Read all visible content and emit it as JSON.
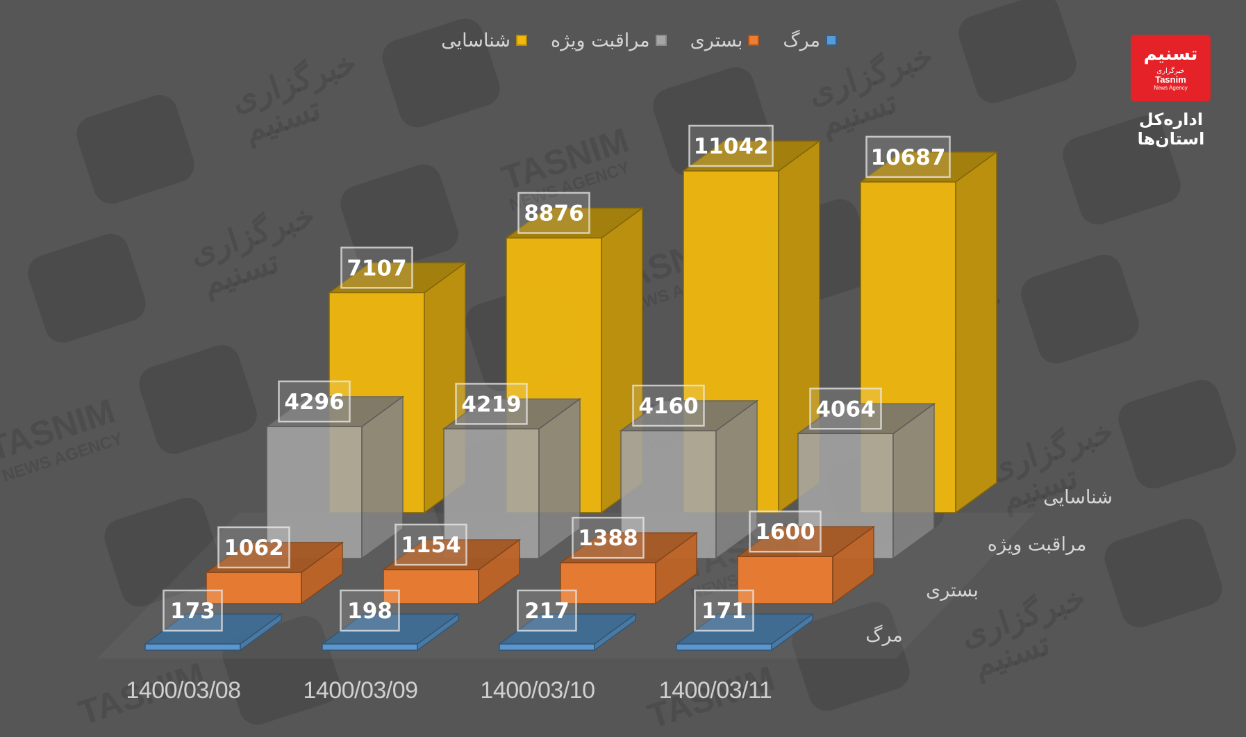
{
  "legend": [
    {
      "label": "شناسایی",
      "color": "#f0b90e",
      "border": "#b38a0b"
    },
    {
      "label": "مراقبت ویژه",
      "color": "#a5a5a5",
      "border": "#8a8a8a"
    },
    {
      "label": "بستری",
      "color": "#ed7d31",
      "border": "#a8541c"
    },
    {
      "label": "مرگ",
      "color": "#5b9bd5",
      "border": "#2e5f8f"
    }
  ],
  "series_axis_labels": [
    "شناسایی",
    "مراقبت ویژه",
    "بستری",
    "مرگ"
  ],
  "categories": [
    "1400/03/08",
    "1400/03/09",
    "1400/03/10",
    "1400/03/11"
  ],
  "logo": {
    "glyph": "تسنیم",
    "line1": "خبرگزاری",
    "line2": "Tasnim",
    "line3": "News Agency",
    "caption": "اداره‌کل استان‌ها"
  },
  "watermark": {
    "text_fa_1": "خبرگزاری",
    "text_fa_2": "تسنیم",
    "text_en_1": "TASNIM",
    "text_en_2": "NEWS AGENCY"
  },
  "chart_data": {
    "type": "bar",
    "subtype": "3d-column",
    "title": "",
    "xlabel": "",
    "ylabel": "",
    "categories": [
      "1400/03/08",
      "1400/03/09",
      "1400/03/10",
      "1400/03/11"
    ],
    "series": [
      {
        "name": "شناسایی",
        "color": "#f0b90e",
        "values": [
          7107,
          8876,
          11042,
          10687
        ]
      },
      {
        "name": "مراقبت ویژه",
        "color": "#a5a5a5",
        "values": [
          4296,
          4219,
          4160,
          4064
        ]
      },
      {
        "name": "بستری",
        "color": "#ed7d31",
        "values": [
          1062,
          1154,
          1388,
          1600
        ]
      },
      {
        "name": "مرگ",
        "color": "#5b9bd5",
        "values": [
          173,
          198,
          217,
          171
        ]
      }
    ],
    "data_labels": true,
    "grid": false,
    "legend_position": "top",
    "axis_visible": false
  }
}
